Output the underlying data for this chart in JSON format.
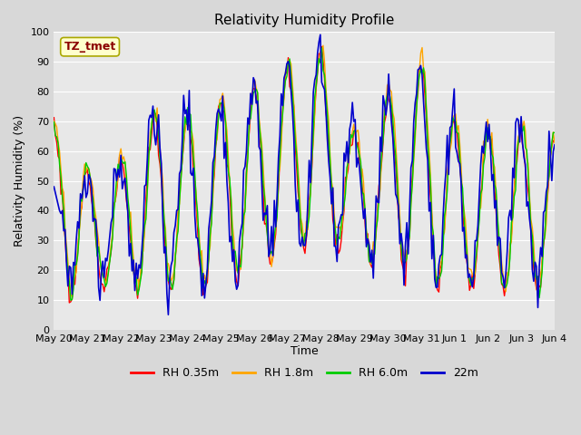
{
  "title": "Relativity Humidity Profile",
  "xlabel": "Time",
  "ylabel": "Relativity Humidity (%)",
  "ylim": [
    0,
    100
  ],
  "yticks": [
    0,
    10,
    20,
    30,
    40,
    50,
    60,
    70,
    80,
    90,
    100
  ],
  "background_color": "#d8d8d8",
  "plot_bg_color": "#e8e8e8",
  "annotation_text": "TZ_tmet",
  "annotation_color": "#8b0000",
  "annotation_bg": "#ffffcc",
  "series_colors": {
    "RH 0.35m": "#ff0000",
    "RH 1.8m": "#ffa500",
    "RH 6.0m": "#00cc00",
    "22m": "#0000cc"
  },
  "x_labels": [
    "May 20",
    "May 21",
    "May 22",
    "May 23",
    "May 24",
    "May 25",
    "May 26",
    "May 27",
    "May 28",
    "May 29",
    "May 30",
    "May 31",
    "Jun 1",
    "Jun 2",
    "Jun 3",
    "Jun 4"
  ],
  "n_points": 360,
  "title_fontsize": 11,
  "axis_label_fontsize": 9,
  "tick_fontsize": 8,
  "legend_fontsize": 9
}
